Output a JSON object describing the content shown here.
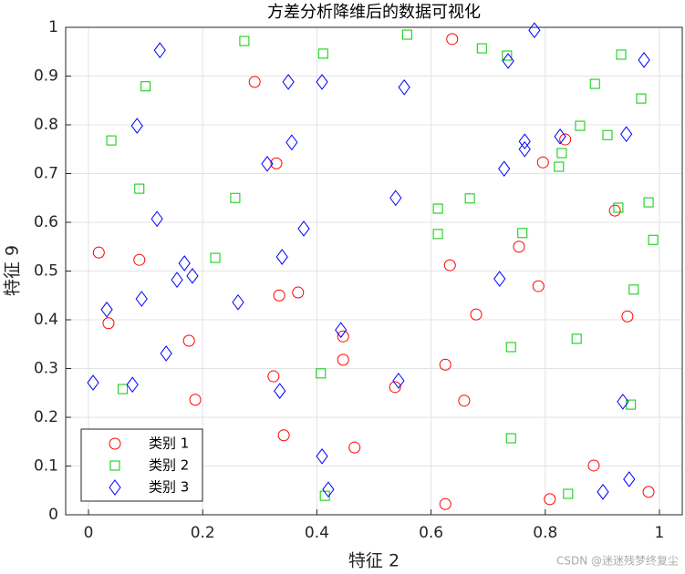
{
  "chart_data": {
    "type": "scatter",
    "title": "方差分析降维后的数据可视化",
    "x_label": "特征 2",
    "y_label": "特征 9",
    "watermark": "CSDN @迷迷残梦终复尘",
    "xlim": [
      -0.04,
      1.04
    ],
    "ylim": [
      0,
      1
    ],
    "xticks": [
      0,
      0.2,
      0.4,
      0.6,
      0.8,
      1
    ],
    "yticks": [
      0,
      0.1,
      0.2,
      0.3,
      0.4,
      0.5,
      0.6,
      0.7,
      0.8,
      0.9,
      1
    ],
    "grid": true,
    "legend": "lower left",
    "series": [
      {
        "name": "类别 1",
        "color": "#ff0000",
        "marker": "circle",
        "x": [
          0.018,
          0.035,
          0.089,
          0.176,
          0.187,
          0.291,
          0.329,
          0.324,
          0.334,
          0.342,
          0.367,
          0.446,
          0.446,
          0.466,
          0.537,
          0.637,
          0.633,
          0.625,
          0.625,
          0.658,
          0.679,
          0.754,
          0.788,
          0.796,
          0.808,
          0.835,
          0.885,
          0.922,
          0.944,
          0.981
        ],
        "y": [
          0.538,
          0.393,
          0.523,
          0.357,
          0.236,
          0.888,
          0.721,
          0.284,
          0.45,
          0.163,
          0.456,
          0.366,
          0.318,
          0.138,
          0.262,
          0.976,
          0.512,
          0.308,
          0.022,
          0.234,
          0.411,
          0.55,
          0.469,
          0.723,
          0.032,
          0.77,
          0.101,
          0.624,
          0.407,
          0.047
        ]
      },
      {
        "name": "类别 2",
        "color": "#00cc00",
        "marker": "square",
        "x": [
          0.04,
          0.1,
          0.089,
          0.06,
          0.222,
          0.257,
          0.273,
          0.411,
          0.407,
          0.414,
          0.558,
          0.612,
          0.612,
          0.668,
          0.689,
          0.733,
          0.74,
          0.74,
          0.76,
          0.824,
          0.829,
          0.84,
          0.855,
          0.861,
          0.887,
          0.909,
          0.928,
          0.933,
          0.95,
          0.955,
          0.968,
          0.981,
          0.989
        ],
        "y": [
          0.768,
          0.879,
          0.669,
          0.258,
          0.527,
          0.65,
          0.972,
          0.946,
          0.29,
          0.039,
          0.985,
          0.628,
          0.576,
          0.649,
          0.957,
          0.942,
          0.344,
          0.157,
          0.578,
          0.714,
          0.742,
          0.043,
          0.361,
          0.798,
          0.884,
          0.779,
          0.63,
          0.944,
          0.226,
          0.462,
          0.854,
          0.641,
          0.564
        ]
      },
      {
        "name": "类别 3",
        "color": "#0000ff",
        "marker": "diamond",
        "x": [
          0.008,
          0.032,
          0.077,
          0.085,
          0.093,
          0.12,
          0.125,
          0.136,
          0.155,
          0.168,
          0.182,
          0.262,
          0.313,
          0.335,
          0.339,
          0.35,
          0.356,
          0.377,
          0.409,
          0.409,
          0.42,
          0.442,
          0.538,
          0.543,
          0.553,
          0.72,
          0.728,
          0.735,
          0.764,
          0.764,
          0.781,
          0.826,
          0.901,
          0.936,
          0.942,
          0.947,
          0.973
        ],
        "y": [
          0.271,
          0.421,
          0.267,
          0.798,
          0.443,
          0.607,
          0.953,
          0.331,
          0.482,
          0.516,
          0.49,
          0.436,
          0.72,
          0.254,
          0.529,
          0.888,
          0.764,
          0.587,
          0.888,
          0.12,
          0.052,
          0.379,
          0.65,
          0.275,
          0.877,
          0.484,
          0.71,
          0.931,
          0.766,
          0.75,
          0.994,
          0.776,
          0.047,
          0.232,
          0.781,
          0.073,
          0.933
        ]
      }
    ]
  }
}
